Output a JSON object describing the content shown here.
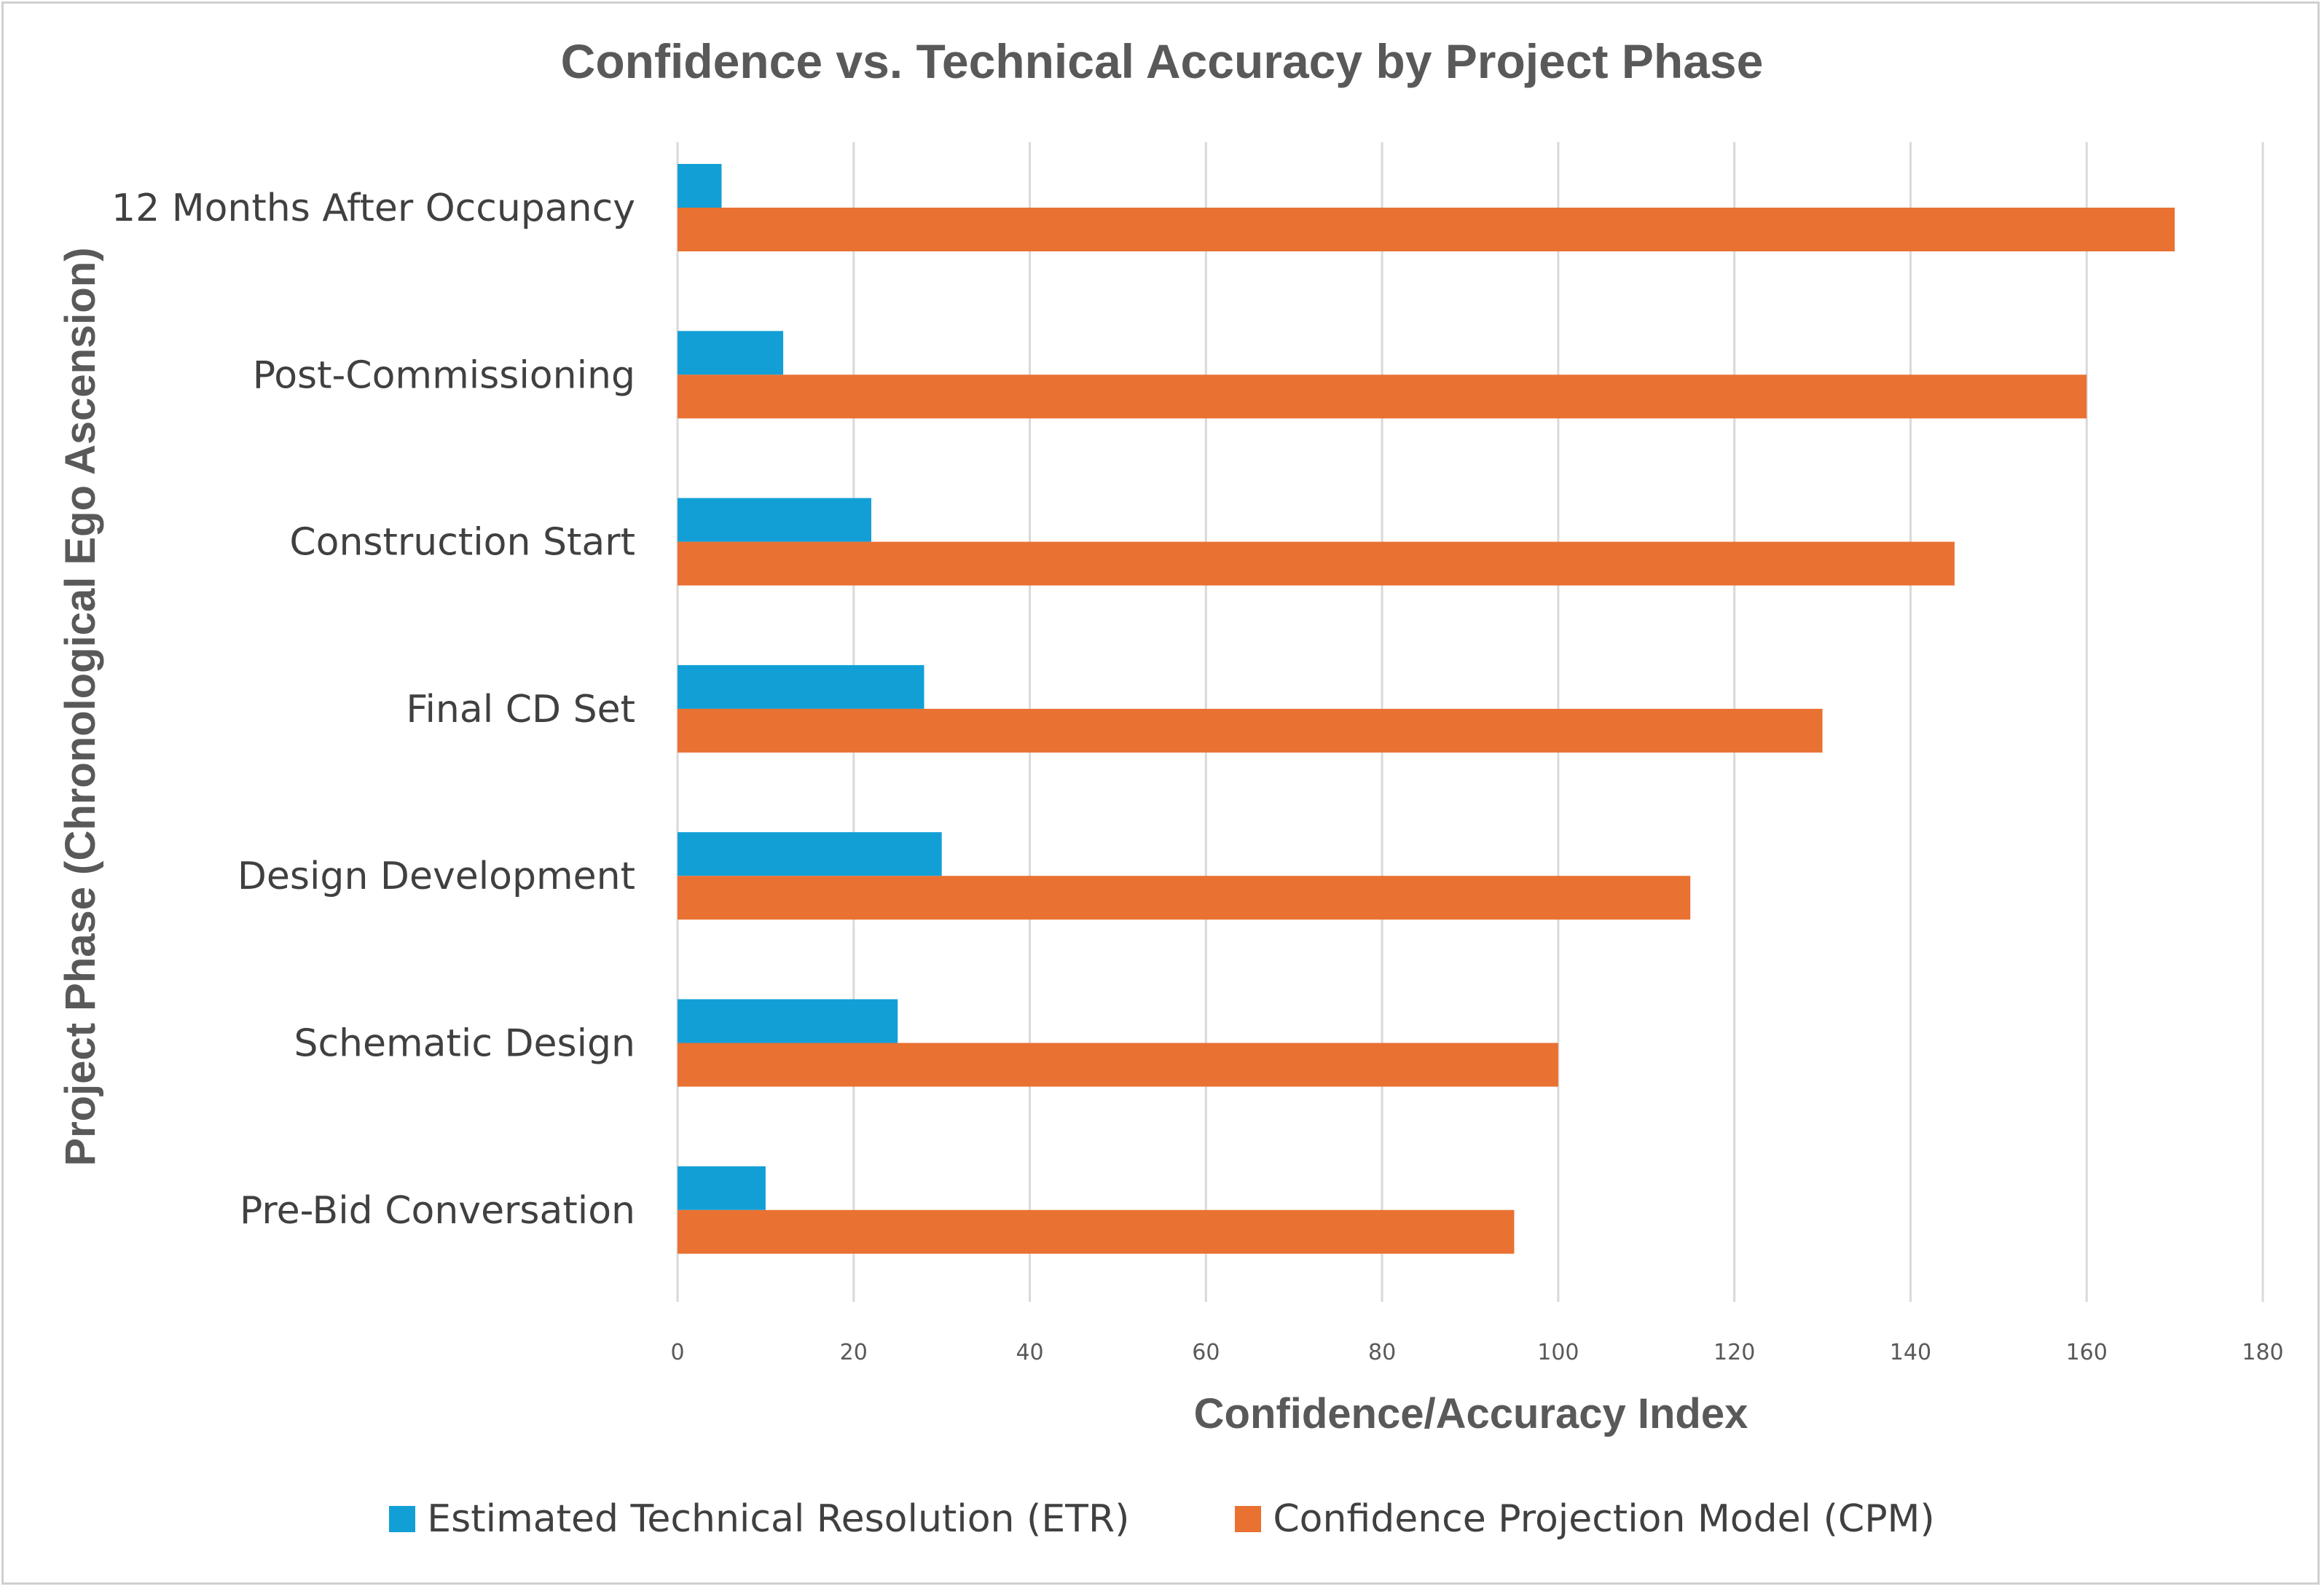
{
  "chart_data": {
    "type": "bar",
    "orientation": "horizontal",
    "title": "Confidence vs. Technical Accuracy by Project Phase",
    "xlabel": "Confidence/Accuracy Index",
    "ylabel": "Project Phase (Chronological Ego Ascension)",
    "xlim": [
      0,
      180
    ],
    "xticks": [
      0,
      20,
      40,
      60,
      80,
      100,
      120,
      140,
      160,
      180
    ],
    "grid": "vertical",
    "legend_position": "bottom",
    "categories": [
      "Pre-Bid Conversation",
      "Schematic Design",
      "Design Development",
      "Final CD Set",
      "Construction Start",
      "Post-Commissioning",
      "12 Months After Occupancy"
    ],
    "series": [
      {
        "name": "Estimated Technical Resolution (ETR)",
        "color": "#129fd6",
        "values": [
          10,
          25,
          30,
          28,
          22,
          12,
          5
        ]
      },
      {
        "name": "Confidence Projection Model (CPM)",
        "color": "#e97132",
        "values": [
          95,
          100,
          115,
          130,
          145,
          160,
          170
        ]
      }
    ]
  }
}
